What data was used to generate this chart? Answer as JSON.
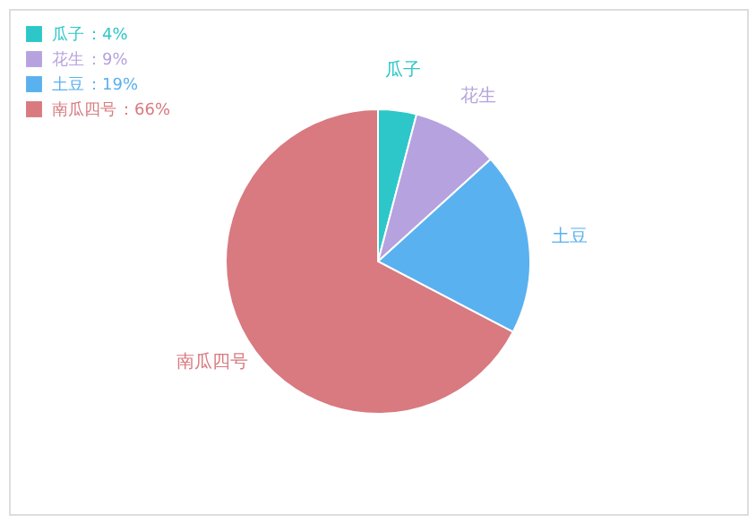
{
  "chart_data": {
    "type": "pie",
    "categories": [
      "瓜子",
      "花生",
      "土豆",
      "南瓜四号"
    ],
    "values": [
      4,
      9,
      19,
      66
    ],
    "colors": [
      "#2ec7c9",
      "#b6a2de",
      "#5ab1ef",
      "#d87a80"
    ],
    "value_labels": [
      "：4%",
      "：9%",
      "：19%",
      "：66%"
    ],
    "legend": "top left"
  }
}
